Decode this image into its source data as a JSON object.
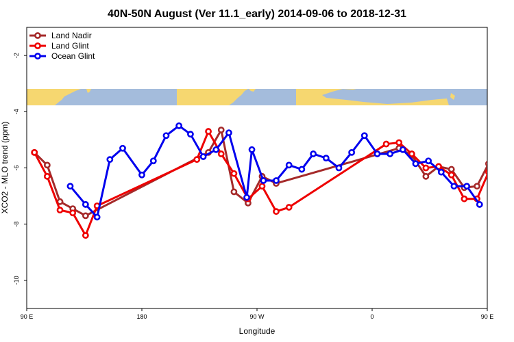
{
  "chart_data": {
    "type": "line",
    "title": "40N-50N August (Ver 11.1_early)   2014-09-06 to 2018-12-31",
    "xlabel": "Longitude",
    "ylabel": "XCO2 - MLO trend (ppm)",
    "xlim": [
      90,
      450
    ],
    "ylim": [
      -11,
      -1
    ],
    "x_ticks": [
      {
        "value": 90,
        "label": "90 E"
      },
      {
        "value": 180,
        "label": "180"
      },
      {
        "value": 270,
        "label": "90 W"
      },
      {
        "value": 360,
        "label": "0"
      },
      {
        "value": 450,
        "label": "90 E"
      },
      {
        "value": 540,
        "label": "180"
      }
    ],
    "y_ticks": [
      -10,
      -8,
      -6,
      -4,
      -2
    ],
    "grid": false,
    "legend_position": "top-left",
    "map_band": {
      "y_range": [
        -3.8,
        -3.2
      ],
      "ocean_color": "#a4bcdc",
      "land_color": "#f6d770"
    },
    "series": [
      {
        "name": "Land Nadir",
        "color": "#a52a2a",
        "x": [
          96,
          106,
          116,
          126,
          136,
          232,
          242,
          252,
          263,
          274,
          285,
          381,
          391,
          402,
          412,
          422,
          432,
          442,
          451,
          461
        ],
        "y": [
          -5.45,
          -5.9,
          -7.2,
          -7.45,
          -7.7,
          -5.45,
          -4.65,
          -6.85,
          -7.25,
          -6.3,
          -6.55,
          -5.3,
          -5.55,
          -6.3,
          -5.95,
          -6.05,
          -6.7,
          -6.65,
          -5.85,
          -5.85
        ]
      },
      {
        "name": "Land Glint",
        "color": "#ee0000",
        "x": [
          96,
          106,
          116,
          126,
          136,
          145,
          223,
          232,
          242,
          252,
          263,
          274,
          285,
          295,
          371,
          381,
          391,
          402,
          412,
          422,
          432,
          442,
          451,
          461
        ],
        "y": [
          -5.45,
          -6.3,
          -7.5,
          -7.6,
          -8.4,
          -7.35,
          -5.7,
          -4.7,
          -5.5,
          -6.2,
          -7.1,
          -6.65,
          -7.55,
          -7.4,
          -5.15,
          -5.1,
          -5.5,
          -6.0,
          -5.95,
          -6.25,
          -7.1,
          -7.1,
          -6.15,
          -6.0
        ]
      },
      {
        "name": "Ocean Glint",
        "color": "#0000ee",
        "x": [
          124,
          136,
          145,
          155,
          165,
          180,
          189,
          199,
          209,
          218,
          228,
          238,
          248,
          262,
          266,
          275,
          285,
          295,
          305,
          314,
          324,
          334,
          344,
          354,
          364,
          374,
          384,
          394,
          404,
          414,
          424,
          434,
          444
        ],
        "y": [
          -6.65,
          -7.3,
          -7.75,
          -5.7,
          -5.3,
          -6.25,
          -5.75,
          -4.85,
          -4.5,
          -4.8,
          -5.6,
          -5.35,
          -4.75,
          -7.05,
          -5.35,
          -6.45,
          -6.45,
          -5.9,
          -6.05,
          -5.5,
          -5.65,
          -6.0,
          -5.45,
          -4.85,
          -5.5,
          -5.5,
          -5.35,
          -5.85,
          -5.75,
          -6.15,
          -6.65,
          -6.65,
          -7.3
        ]
      }
    ]
  }
}
